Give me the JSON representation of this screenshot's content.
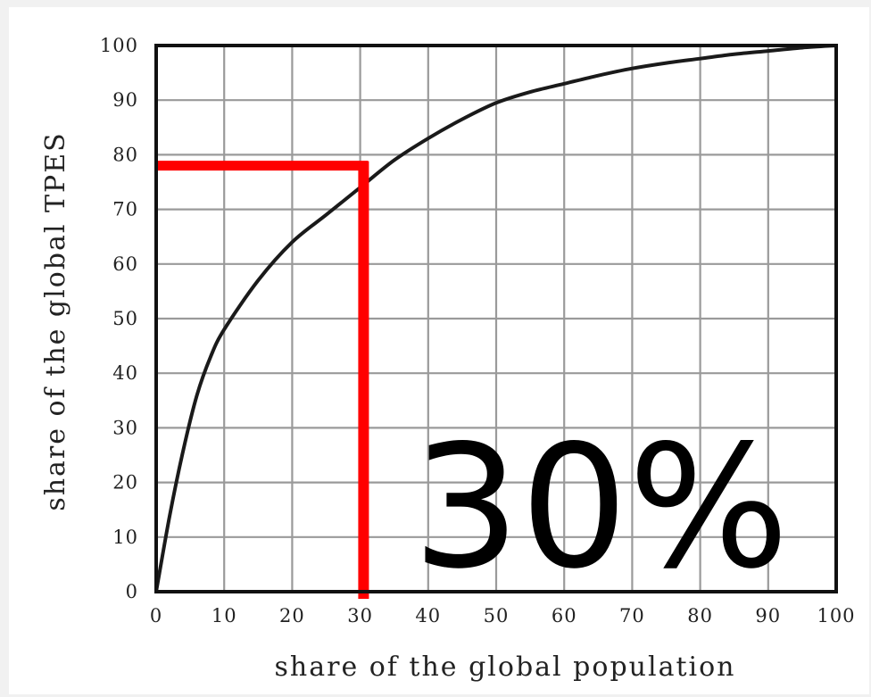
{
  "chart_data": {
    "type": "line",
    "title": "",
    "xlabel": "share of the global population",
    "ylabel": "share of the global TPES",
    "xlim": [
      0,
      100
    ],
    "ylim": [
      0,
      100
    ],
    "x_ticks": [
      "0",
      "10",
      "20",
      "30",
      "40",
      "50",
      "60",
      "70",
      "80",
      "90",
      "100"
    ],
    "y_ticks": [
      "0",
      "10",
      "20",
      "30",
      "40",
      "50",
      "60",
      "70",
      "80",
      "90",
      "100"
    ],
    "grid": true,
    "legend": "none",
    "series": [
      {
        "color": "#1a1a1a",
        "x": [
          0,
          2,
          4,
          6,
          8,
          10,
          15,
          20,
          25,
          30,
          35,
          40,
          45,
          50,
          55,
          60,
          65,
          70,
          75,
          80,
          85,
          90,
          95,
          100
        ],
        "y": [
          0,
          14,
          26,
          36,
          43,
          48,
          57,
          64,
          69,
          74,
          79,
          83,
          86.5,
          89.5,
          91.5,
          93,
          94.5,
          95.8,
          96.8,
          97.6,
          98.4,
          99,
          99.6,
          100
        ]
      }
    ],
    "annotations": {
      "marker_color": "#ff0000",
      "marker_x": 30.5,
      "marker_y": 78,
      "label": "30%"
    }
  }
}
